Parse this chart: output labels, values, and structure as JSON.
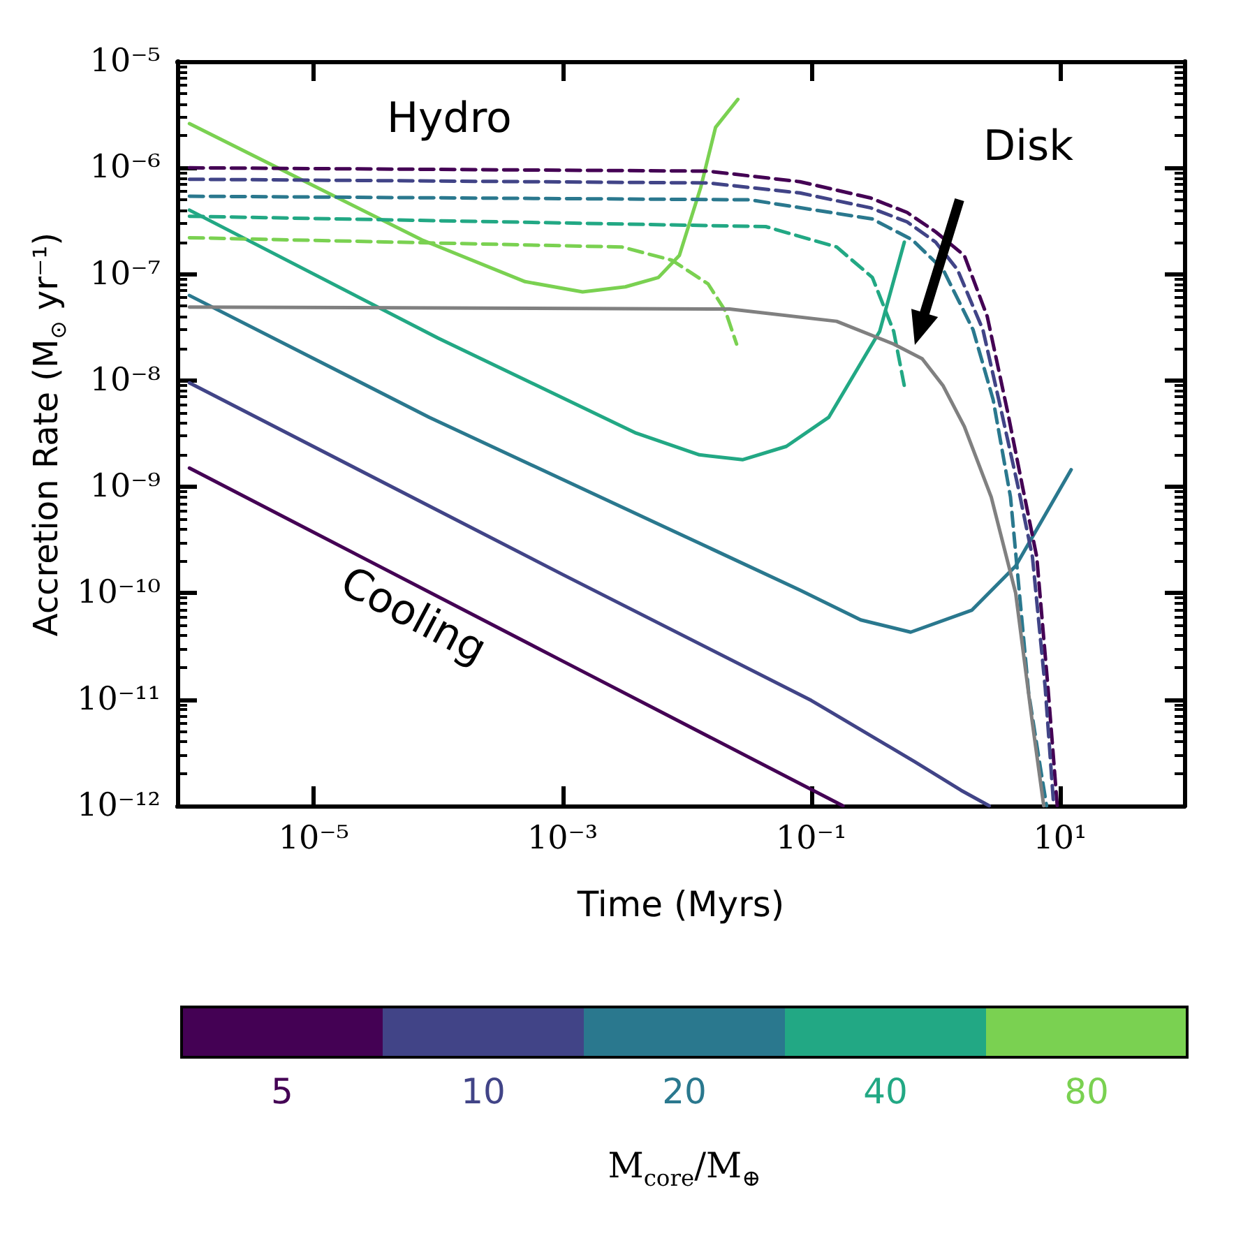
{
  "chart_data": {
    "type": "line",
    "xlabel": "Time (Myrs)",
    "ylabel": "Accretion Rate (M$_{⊙}$ yr⁻¹)",
    "legend_title": "M$_{core}$/M$_{⊕}$",
    "legend": "bottom",
    "log": "xy",
    "grid": false,
    "marker": "none",
    "line_style": "solid",
    "xlim": [
      8e-07,
      100
    ],
    "ylim": [
      1e-12,
      1e-05
    ],
    "xticks": [
      {
        "value": 1e-05,
        "label": "10⁻⁵"
      },
      {
        "value": 0.001,
        "label": "10⁻³"
      },
      {
        "value": 0.1,
        "label": "10⁻¹"
      },
      {
        "value": 10,
        "label": "10¹"
      }
    ],
    "yticks": [
      {
        "value": 1e-12,
        "label": "10⁻¹²"
      },
      {
        "value": 1e-11,
        "label": "10⁻¹¹"
      },
      {
        "value": 1e-10,
        "label": "10⁻¹⁰"
      },
      {
        "value": 1e-09,
        "label": "10⁻⁹"
      },
      {
        "value": 1e-08,
        "label": "10⁻⁸"
      },
      {
        "value": 1e-07,
        "label": "10⁻⁷"
      },
      {
        "value": 1e-06,
        "label": "10⁻⁶"
      },
      {
        "value": 1e-05,
        "label": "10⁻⁵"
      },
      {
        "value": 2e-12,
        "label": null
      },
      {
        "value": 3e-12,
        "label": null
      },
      {
        "value": 4e-12,
        "label": null
      },
      {
        "value": 5e-12,
        "label": null
      },
      {
        "value": 6e-12,
        "label": null
      },
      {
        "value": 7e-12,
        "label": null
      },
      {
        "value": 8e-12,
        "label": null
      },
      {
        "value": 9e-12,
        "label": null
      },
      {
        "value": 2e-11,
        "label": null
      },
      {
        "value": 3e-11,
        "label": null
      },
      {
        "value": 4e-11,
        "label": null
      },
      {
        "value": 5e-11,
        "label": null
      },
      {
        "value": 6e-11,
        "label": null
      },
      {
        "value": 7e-11,
        "label": null
      },
      {
        "value": 8e-11,
        "label": null
      },
      {
        "value": 9e-11,
        "label": null
      },
      {
        "value": 2e-10,
        "label": null
      },
      {
        "value": 3e-10,
        "label": null
      },
      {
        "value": 4e-10,
        "label": null
      },
      {
        "value": 5e-10,
        "label": null
      },
      {
        "value": 6e-10,
        "label": null
      },
      {
        "value": 7e-10,
        "label": null
      },
      {
        "value": 8e-10,
        "label": null
      },
      {
        "value": 9e-10,
        "label": null
      },
      {
        "value": 2e-09,
        "label": null
      },
      {
        "value": 3e-09,
        "label": null
      },
      {
        "value": 4e-09,
        "label": null
      },
      {
        "value": 5e-09,
        "label": null
      },
      {
        "value": 6e-09,
        "label": null
      },
      {
        "value": 7e-09,
        "label": null
      },
      {
        "value": 8e-09,
        "label": null
      },
      {
        "value": 9e-09,
        "label": null
      },
      {
        "value": 2e-08,
        "label": null
      },
      {
        "value": 3e-08,
        "label": null
      },
      {
        "value": 4e-08,
        "label": null
      },
      {
        "value": 5e-08,
        "label": null
      },
      {
        "value": 6e-08,
        "label": null
      },
      {
        "value": 7e-08,
        "label": null
      },
      {
        "value": 8e-08,
        "label": null
      },
      {
        "value": 9e-08,
        "label": null
      },
      {
        "value": 2e-07,
        "label": null
      },
      {
        "value": 3e-07,
        "label": null
      },
      {
        "value": 4e-07,
        "label": null
      },
      {
        "value": 5e-07,
        "label": null
      },
      {
        "value": 6e-07,
        "label": null
      },
      {
        "value": 7e-07,
        "label": null
      },
      {
        "value": 8e-07,
        "label": null
      },
      {
        "value": 9e-07,
        "label": null
      },
      {
        "value": 2e-06,
        "label": null
      },
      {
        "value": 3e-06,
        "label": null
      },
      {
        "value": 4e-06,
        "label": null
      },
      {
        "value": 5e-06,
        "label": null
      },
      {
        "value": 6e-06,
        "label": null
      },
      {
        "value": 7e-06,
        "label": null
      },
      {
        "value": 8e-06,
        "label": null
      },
      {
        "value": 9e-06,
        "label": null
      }
    ],
    "annotations": [
      "Hydro",
      "Cooling",
      "Disk"
    ],
    "series": [
      {
        "name": "5",
        "color": "#440154",
        "x": [
          1e-06,
          0.001,
          0.18
        ],
        "values": [
          1.5e-09,
          2.3e-11,
          1e-12
        ]
      },
      {
        "name": "10",
        "color": "#414487",
        "x": [
          1e-06,
          0.001,
          0.1,
          0.68,
          1.6,
          2.7
        ],
        "values": [
          9.5e-09,
          1.5e-10,
          9.8e-12,
          2.6e-12,
          1.4e-12,
          1e-12
        ]
      },
      {
        "name": "20",
        "color": "#2a788e",
        "x": [
          1e-06,
          8.5e-05,
          0.081,
          0.25,
          0.63,
          1.95,
          4.4,
          12.3
        ],
        "values": [
          6.3e-08,
          4.5e-09,
          1.07e-10,
          5.6e-11,
          4.3e-11,
          6.9e-11,
          1.8e-10,
          1.45e-09
        ]
      },
      {
        "name": "40",
        "color": "#22a884",
        "x": [
          1e-06,
          0.0001,
          0.0039,
          0.0126,
          0.028,
          0.063,
          0.138,
          0.355,
          0.56
        ],
        "values": [
          4e-07,
          2.5e-08,
          3.2e-09,
          2e-09,
          1.8e-09,
          2.4e-09,
          4.5e-09,
          2.9e-08,
          2e-07
        ]
      },
      {
        "name": "80",
        "color": "#7ad151",
        "x": [
          1e-06,
          7.4e-05,
          0.0005,
          0.00145,
          0.0032,
          0.0059,
          0.0087,
          0.0129,
          0.017,
          0.0257
        ],
        "values": [
          2.6e-06,
          2.1e-07,
          8.5e-08,
          6.8e-08,
          7.6e-08,
          9.3e-08,
          1.5e-07,
          6.5e-07,
          2.4e-06,
          4.4e-06
        ]
      },
      {
        "color": "#440154",
        "line_style": "dashed",
        "x": [
          1e-06,
          0.0148,
          0.081,
          0.3,
          0.59,
          1.0,
          1.7,
          2.6,
          3.8,
          5.0,
          6.5,
          8.0,
          9.5
        ],
        "values": [
          1e-06,
          9.3e-07,
          7.4e-07,
          5.2e-07,
          3.8e-07,
          2.5e-07,
          1.5e-07,
          4e-08,
          5e-09,
          1e-09,
          2.2e-10,
          1.3e-11,
          1e-12
        ]
      },
      {
        "color": "#414487",
        "line_style": "dashed",
        "x": [
          1e-06,
          0.0148,
          0.081,
          0.3,
          0.59,
          1.0,
          1.5,
          2.4,
          3.3,
          4.6,
          6.0,
          7.6,
          8.9
        ],
        "values": [
          7.8e-07,
          7.2e-07,
          5.8e-07,
          4.2e-07,
          3.1e-07,
          2e-07,
          1.1e-07,
          3e-08,
          5.8e-09,
          1e-09,
          2.2e-10,
          1.3e-11,
          1e-12
        ]
      },
      {
        "color": "#2a788e",
        "line_style": "dashed",
        "x": [
          1e-06,
          0.032,
          0.31,
          0.65,
          1.15,
          2.0,
          2.9,
          4.0,
          5.6,
          6.7,
          7.8
        ],
        "values": [
          5.4e-07,
          5e-07,
          3.3e-07,
          2.1e-07,
          1.1e-07,
          3e-08,
          6.6e-09,
          8e-10,
          1.15e-11,
          3e-12,
          1e-12
        ]
      },
      {
        "color": "#22a884",
        "line_style": "dashed",
        "x": [
          1e-06,
          0.043,
          0.16,
          0.31,
          0.46,
          0.56
        ],
        "values": [
          3.5e-07,
          2.8e-07,
          1.8e-07,
          9.3e-08,
          2.9e-08,
          8.9e-09
        ]
      },
      {
        "color": "#7ad151",
        "line_style": "dashed",
        "x": [
          1e-06,
          0.003,
          0.0076,
          0.0148,
          0.0204,
          0.0251
        ],
        "values": [
          2.2e-07,
          1.8e-07,
          1.35e-07,
          8.1e-08,
          4.5e-08,
          2.2e-08
        ]
      },
      {
        "color": "#808080",
        "x": [
          1e-06,
          0.022,
          0.16,
          0.46,
          0.78,
          1.15,
          1.7,
          2.8,
          4.4,
          6.0,
          7.4
        ],
        "values": [
          4.9e-08,
          4.7e-08,
          3.6e-08,
          2.2e-08,
          1.6e-08,
          8.9e-09,
          3.7e-09,
          8e-10,
          1e-10,
          6e-12,
          1e-12
        ]
      }
    ]
  }
}
